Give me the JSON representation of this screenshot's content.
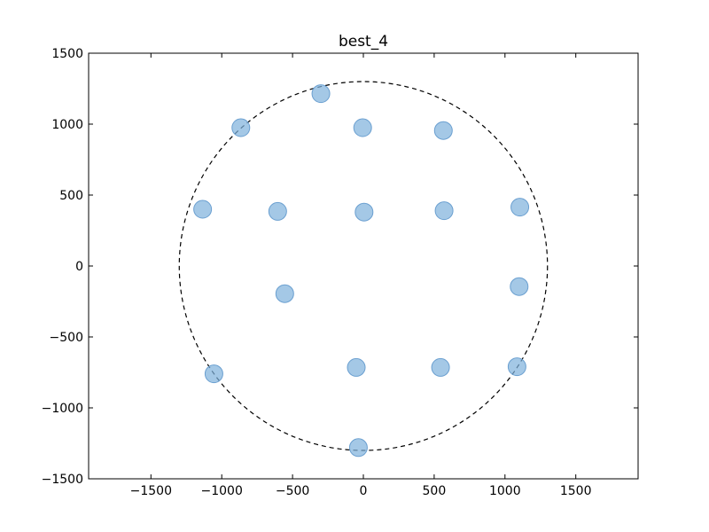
{
  "chart_data": {
    "type": "scatter",
    "title": "best_4",
    "xlabel": "",
    "ylabel": "",
    "xlim": [
      -1940,
      1940
    ],
    "ylim": [
      -1500,
      1500
    ],
    "xticks": [
      -1500,
      -1000,
      -500,
      0,
      500,
      1000,
      1500
    ],
    "yticks": [
      -1500,
      -1000,
      -500,
      0,
      500,
      1000,
      1500
    ],
    "grid": false,
    "circle": {
      "center": [
        0,
        0
      ],
      "radius": 1300,
      "style": "dashed",
      "color": "#000000"
    },
    "marker_color": "#7eb0dc",
    "marker_edge_color": "#6a9fd0",
    "points": [
      [
        -300,
        1215
      ],
      [
        -865,
        975
      ],
      [
        -5,
        975
      ],
      [
        565,
        955
      ],
      [
        -1135,
        400
      ],
      [
        -605,
        385
      ],
      [
        5,
        380
      ],
      [
        570,
        390
      ],
      [
        1105,
        415
      ],
      [
        -555,
        -195
      ],
      [
        1100,
        -145
      ],
      [
        -1055,
        -760
      ],
      [
        -50,
        -715
      ],
      [
        545,
        -715
      ],
      [
        1085,
        -710
      ],
      [
        -35,
        -1280
      ]
    ]
  }
}
